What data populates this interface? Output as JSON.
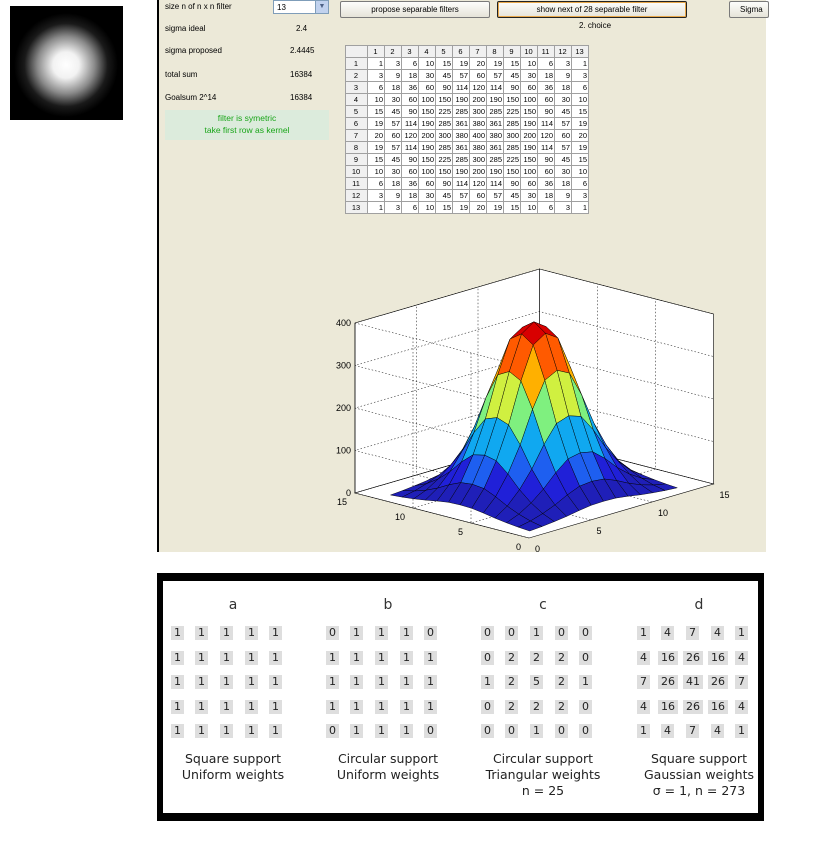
{
  "controls": {
    "size_label": "size n of n x n filter",
    "size_value": "13",
    "propose_button": "propose separable filters",
    "show_next_button": "show next of 28 separable filter",
    "choice_label": "2. choice",
    "sigma_button": "Sigma"
  },
  "stats": [
    {
      "label": "sigma ideal",
      "value": "2.4"
    },
    {
      "label": "sigma proposed",
      "value": "2.4445"
    },
    {
      "label": "total sum",
      "value": "16384"
    },
    {
      "label": "Goalsum 2^14",
      "value": "16384"
    }
  ],
  "note": {
    "line1": "filter is symetric",
    "line2": "take first row as kernel"
  },
  "grid": {
    "columns": [
      "1",
      "2",
      "3",
      "4",
      "5",
      "6",
      "7",
      "8",
      "9",
      "10",
      "11",
      "12",
      "13"
    ],
    "rows": [
      [
        1,
        3,
        6,
        10,
        15,
        19,
        20,
        19,
        15,
        10,
        6,
        3,
        1
      ],
      [
        3,
        9,
        18,
        30,
        45,
        57,
        60,
        57,
        45,
        30,
        18,
        9,
        3
      ],
      [
        6,
        18,
        36,
        60,
        90,
        114,
        120,
        114,
        90,
        60,
        36,
        18,
        6
      ],
      [
        10,
        30,
        60,
        100,
        150,
        190,
        200,
        190,
        150,
        100,
        60,
        30,
        10
      ],
      [
        15,
        45,
        90,
        150,
        225,
        285,
        300,
        285,
        225,
        150,
        90,
        45,
        15
      ],
      [
        19,
        57,
        114,
        190,
        285,
        361,
        380,
        361,
        285,
        190,
        114,
        57,
        19
      ],
      [
        20,
        60,
        120,
        200,
        300,
        380,
        400,
        380,
        300,
        200,
        120,
        60,
        20
      ],
      [
        19,
        57,
        114,
        190,
        285,
        361,
        380,
        361,
        285,
        190,
        114,
        57,
        19
      ],
      [
        15,
        45,
        90,
        150,
        225,
        285,
        300,
        285,
        225,
        150,
        90,
        45,
        15
      ],
      [
        10,
        30,
        60,
        100,
        150,
        190,
        200,
        190,
        150,
        100,
        60,
        30,
        10
      ],
      [
        6,
        18,
        36,
        60,
        90,
        114,
        120,
        114,
        90,
        60,
        36,
        18,
        6
      ],
      [
        3,
        9,
        18,
        30,
        45,
        57,
        60,
        57,
        45,
        30,
        18,
        9,
        3
      ],
      [
        1,
        3,
        6,
        10,
        15,
        19,
        20,
        19,
        15,
        10,
        6,
        3,
        1
      ]
    ]
  },
  "chart_data": {
    "type": "surface",
    "title": "",
    "xlabel": "",
    "ylabel": "",
    "zlim": [
      0,
      400
    ],
    "z_ticks": [
      0,
      100,
      200,
      300,
      400
    ],
    "x_ticks": [
      0,
      5,
      10,
      15
    ],
    "y_ticks": [
      0,
      5,
      10,
      15
    ],
    "grid": true,
    "kernel_1d": [
      1,
      3,
      6,
      10,
      15,
      19,
      20,
      19,
      15,
      10,
      6,
      3,
      1
    ]
  },
  "kernels": [
    {
      "letter": "a",
      "matrix": [
        [
          1,
          1,
          1,
          1,
          1
        ],
        [
          1,
          1,
          1,
          1,
          1
        ],
        [
          1,
          1,
          1,
          1,
          1
        ],
        [
          1,
          1,
          1,
          1,
          1
        ],
        [
          1,
          1,
          1,
          1,
          1
        ]
      ],
      "caption1": "Square support",
      "caption2": "Uniform weights",
      "caption3": ""
    },
    {
      "letter": "b",
      "matrix": [
        [
          0,
          1,
          1,
          1,
          0
        ],
        [
          1,
          1,
          1,
          1,
          1
        ],
        [
          1,
          1,
          1,
          1,
          1
        ],
        [
          1,
          1,
          1,
          1,
          1
        ],
        [
          0,
          1,
          1,
          1,
          0
        ]
      ],
      "caption1": "Circular support",
      "caption2": "Uniform weights",
      "caption3": ""
    },
    {
      "letter": "c",
      "matrix": [
        [
          0,
          0,
          1,
          0,
          0
        ],
        [
          0,
          2,
          2,
          2,
          0
        ],
        [
          1,
          2,
          5,
          2,
          1
        ],
        [
          0,
          2,
          2,
          2,
          0
        ],
        [
          0,
          0,
          1,
          0,
          0
        ]
      ],
      "caption1": "Circular support",
      "caption2": "Triangular weights",
      "caption3": "n = 25"
    },
    {
      "letter": "d",
      "matrix": [
        [
          1,
          4,
          7,
          4,
          1
        ],
        [
          4,
          16,
          26,
          16,
          4
        ],
        [
          7,
          26,
          41,
          26,
          7
        ],
        [
          4,
          16,
          26,
          16,
          4
        ],
        [
          1,
          4,
          7,
          4,
          1
        ]
      ],
      "caption1": "Square support",
      "caption2": "Gaussian weights",
      "caption3": "σ = 1, n = 273"
    }
  ]
}
